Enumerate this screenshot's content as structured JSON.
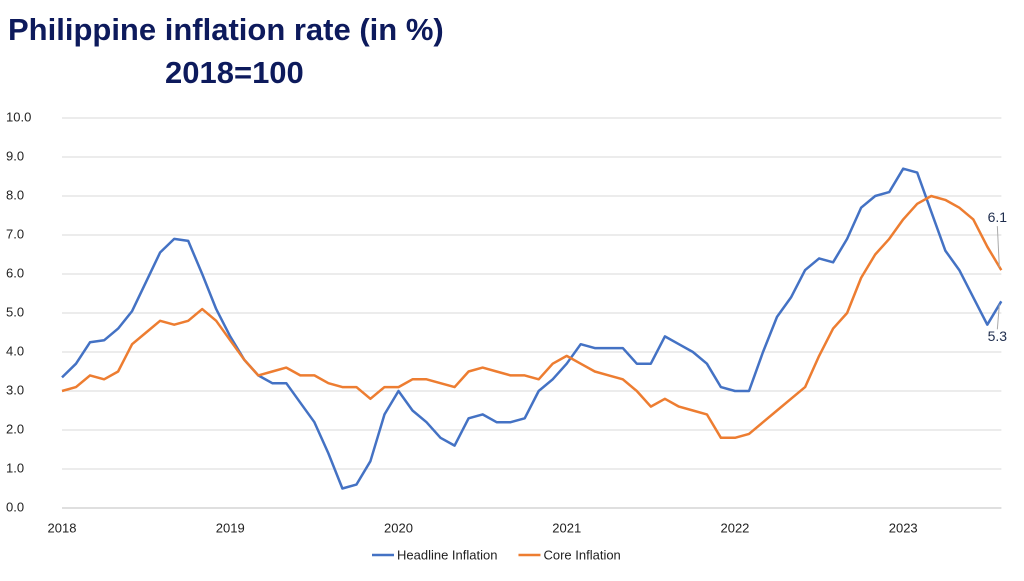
{
  "chart_data": {
    "type": "line",
    "title": "Philippine inflation rate (in %)",
    "subtitle": "2018=100",
    "categories": [
      "2018",
      null,
      null,
      null,
      null,
      null,
      null,
      null,
      null,
      null,
      null,
      null,
      "2019",
      null,
      null,
      null,
      null,
      null,
      null,
      null,
      null,
      null,
      null,
      null,
      "2020",
      null,
      null,
      null,
      null,
      null,
      null,
      null,
      null,
      null,
      null,
      null,
      "2021",
      null,
      null,
      null,
      null,
      null,
      null,
      null,
      null,
      null,
      null,
      null,
      "2022",
      null,
      null,
      null,
      null,
      null,
      null,
      null,
      null,
      null,
      null,
      null,
      "2023",
      null,
      null,
      null,
      null,
      null,
      null,
      null
    ],
    "series": [
      {
        "name": "Headline Inflation",
        "color": "#4472c4",
        "values": [
          3.35,
          3.7,
          4.25,
          4.3,
          4.6,
          5.05,
          5.8,
          6.55,
          6.9,
          6.85,
          6.0,
          5.1,
          4.4,
          3.8,
          3.4,
          3.2,
          3.2,
          2.7,
          2.2,
          1.4,
          0.5,
          0.6,
          1.2,
          2.4,
          3.0,
          2.5,
          2.2,
          1.8,
          1.6,
          2.3,
          2.4,
          2.2,
          2.2,
          2.3,
          3.0,
          3.3,
          3.7,
          4.2,
          4.1,
          4.1,
          4.1,
          3.7,
          3.7,
          4.4,
          4.2,
          4.0,
          3.7,
          3.1,
          3.0,
          3.0,
          4.0,
          4.9,
          5.4,
          6.1,
          6.4,
          6.3,
          6.9,
          7.7,
          8.0,
          8.1,
          8.7,
          8.6,
          7.6,
          6.6,
          6.1,
          5.4,
          4.7,
          5.3
        ]
      },
      {
        "name": "Core Inflation",
        "color": "#ed7d31",
        "values": [
          3.0,
          3.1,
          3.4,
          3.3,
          3.5,
          4.2,
          4.5,
          4.8,
          4.7,
          4.8,
          5.1,
          4.8,
          4.3,
          3.8,
          3.4,
          3.5,
          3.6,
          3.4,
          3.4,
          3.2,
          3.1,
          3.1,
          2.8,
          3.1,
          3.1,
          3.3,
          3.3,
          3.2,
          3.1,
          3.5,
          3.6,
          3.5,
          3.4,
          3.4,
          3.3,
          3.7,
          3.9,
          3.7,
          3.5,
          3.4,
          3.3,
          3.0,
          2.6,
          2.8,
          2.6,
          2.5,
          2.4,
          1.8,
          1.8,
          1.9,
          2.2,
          2.5,
          2.8,
          3.1,
          3.9,
          4.6,
          5.0,
          5.9,
          6.5,
          6.9,
          7.4,
          7.8,
          8.0,
          7.9,
          7.7,
          7.4,
          6.7,
          6.1
        ]
      }
    ],
    "ylim": [
      0,
      10
    ],
    "yticks": [
      {
        "value": 0,
        "label": "0.0"
      },
      {
        "value": 1,
        "label": "1.0"
      },
      {
        "value": 2,
        "label": "2.0"
      },
      {
        "value": 3,
        "label": "3.0"
      },
      {
        "value": 4,
        "label": "4.0"
      },
      {
        "value": 5,
        "label": "5.0"
      },
      {
        "value": 6,
        "label": "6.0"
      },
      {
        "value": 7,
        "label": "7.0"
      },
      {
        "value": 8,
        "label": "8.0"
      },
      {
        "value": 9,
        "label": "9.0"
      },
      {
        "value": 10,
        "label": "10.0"
      }
    ],
    "grid": true,
    "legend": "bottom"
  }
}
